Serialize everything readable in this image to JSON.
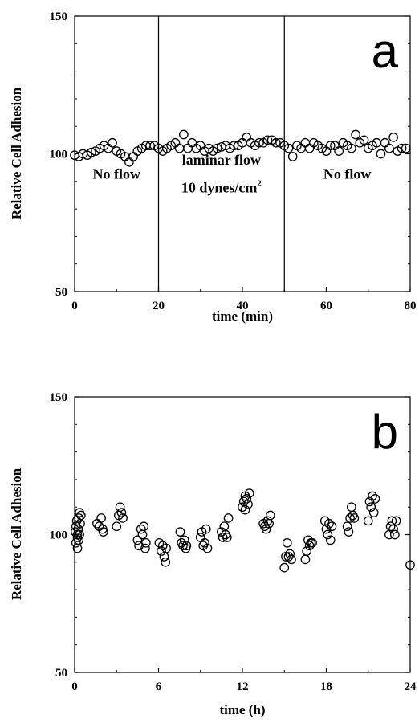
{
  "chart_data": [
    {
      "type": "scatter",
      "panel_label": "a",
      "xlabel": "time (min)",
      "ylabel": "Relative Cell Adhesion",
      "xlim": [
        0,
        80
      ],
      "ylim": [
        50,
        150
      ],
      "xticks": [
        "0",
        "20",
        "40",
        "60",
        "80"
      ],
      "yticks": [
        "50",
        "100",
        "150"
      ],
      "vertical_lines": [
        20,
        50
      ],
      "annotations": [
        {
          "text": "No flow",
          "x": 10,
          "y": 91
        },
        {
          "text": "laminar flow",
          "x": 35,
          "y": 96
        },
        {
          "text": "10 dynes/cm",
          "sup": "2",
          "x": 35,
          "y": 86
        },
        {
          "text": "No flow",
          "x": 65,
          "y": 91
        }
      ],
      "x": [
        0,
        1,
        2,
        3,
        4,
        5,
        6,
        7,
        8,
        9,
        10,
        11,
        12,
        13,
        14,
        15,
        16,
        17,
        18,
        19,
        20,
        21,
        22,
        23,
        24,
        25,
        26,
        27,
        28,
        29,
        30,
        31,
        32,
        33,
        34,
        35,
        36,
        37,
        38,
        39,
        40,
        41,
        42,
        43,
        44,
        45,
        46,
        47,
        48,
        49,
        50,
        51,
        52,
        53,
        54,
        55,
        56,
        57,
        58,
        59,
        60,
        61,
        62,
        63,
        64,
        65,
        66,
        67,
        68,
        69,
        70,
        71,
        72,
        73,
        74,
        75,
        76,
        77,
        78,
        79
      ],
      "y": [
        99.5,
        99,
        100,
        99.5,
        100.5,
        101,
        102,
        103,
        102,
        104,
        101,
        100,
        99,
        97,
        99,
        101,
        102,
        103,
        103,
        103,
        102,
        101,
        102,
        103,
        104,
        102,
        107,
        102,
        104,
        102,
        103,
        101,
        102,
        101,
        102,
        102.5,
        103,
        102,
        103,
        103,
        104,
        106,
        104,
        103,
        104,
        104,
        105,
        105,
        104,
        104,
        103,
        102,
        99,
        103,
        102,
        104,
        102,
        104,
        103,
        102,
        101,
        103,
        103,
        101,
        104,
        103,
        102,
        107,
        104,
        105,
        102,
        103,
        104,
        100,
        104,
        102,
        106,
        101,
        102,
        102
      ]
    },
    {
      "type": "scatter",
      "panel_label": "b",
      "xlabel": "time (h)",
      "ylabel": "Relative Cell Adhesion",
      "xlim": [
        0,
        24
      ],
      "ylim": [
        50,
        150
      ],
      "xticks": [
        "0",
        "6",
        "12",
        "18",
        "24"
      ],
      "yticks": [
        "50",
        "100",
        "150"
      ],
      "x": [
        0.05,
        0.1,
        0.15,
        0.2,
        0.25,
        0.3,
        0.35,
        0.4,
        0.1,
        0.2,
        0.3,
        0.45,
        0.2,
        0.35,
        1.6,
        1.75,
        1.9,
        2.0,
        2.05,
        3.0,
        3.15,
        3.25,
        3.35,
        3.45,
        4.5,
        4.6,
        4.75,
        4.85,
        4.95,
        5.05,
        5.1,
        6.05,
        6.2,
        6.3,
        6.4,
        6.5,
        6.55,
        7.55,
        7.65,
        7.75,
        7.85,
        7.95,
        8.0,
        9.0,
        9.1,
        9.2,
        9.3,
        9.4,
        9.5,
        10.5,
        10.6,
        10.7,
        10.8,
        10.9,
        11.0,
        12.0,
        12.1,
        12.2,
        12.3,
        12.4,
        12.5,
        12.2,
        13.5,
        13.6,
        13.7,
        13.8,
        13.9,
        14.0,
        15.0,
        15.1,
        15.2,
        15.3,
        15.4,
        15.5,
        16.5,
        16.6,
        16.7,
        16.8,
        16.9,
        17.0,
        17.9,
        18.0,
        18.1,
        18.2,
        18.3,
        18.4,
        19.5,
        19.6,
        19.7,
        19.8,
        19.9,
        20.0,
        21.0,
        21.1,
        21.2,
        21.3,
        21.4,
        21.5,
        22.5,
        22.6,
        22.7,
        22.8,
        22.9,
        23.0,
        24.0
      ],
      "y": [
        101,
        103,
        105,
        99,
        102,
        98,
        100,
        104,
        97,
        100,
        106,
        107,
        95,
        108,
        104,
        103,
        106,
        102,
        101,
        103,
        107,
        110,
        108,
        106,
        98,
        96,
        102,
        100,
        103,
        95,
        97,
        97,
        94,
        96,
        92,
        90,
        95,
        101,
        97,
        96,
        98,
        95,
        96,
        99,
        101,
        96,
        97,
        102,
        95,
        101,
        99,
        103,
        100,
        99,
        106,
        110,
        112,
        114,
        113,
        111,
        115,
        109,
        104,
        103,
        102,
        105,
        104,
        107,
        88,
        92,
        97,
        92,
        93,
        91,
        91,
        94,
        98,
        96,
        97,
        97,
        105,
        102,
        100,
        104,
        98,
        103,
        103,
        101,
        106,
        110,
        107,
        106,
        105,
        112,
        110,
        114,
        108,
        113,
        100,
        103,
        105,
        102,
        100,
        105,
        89
      ]
    }
  ]
}
